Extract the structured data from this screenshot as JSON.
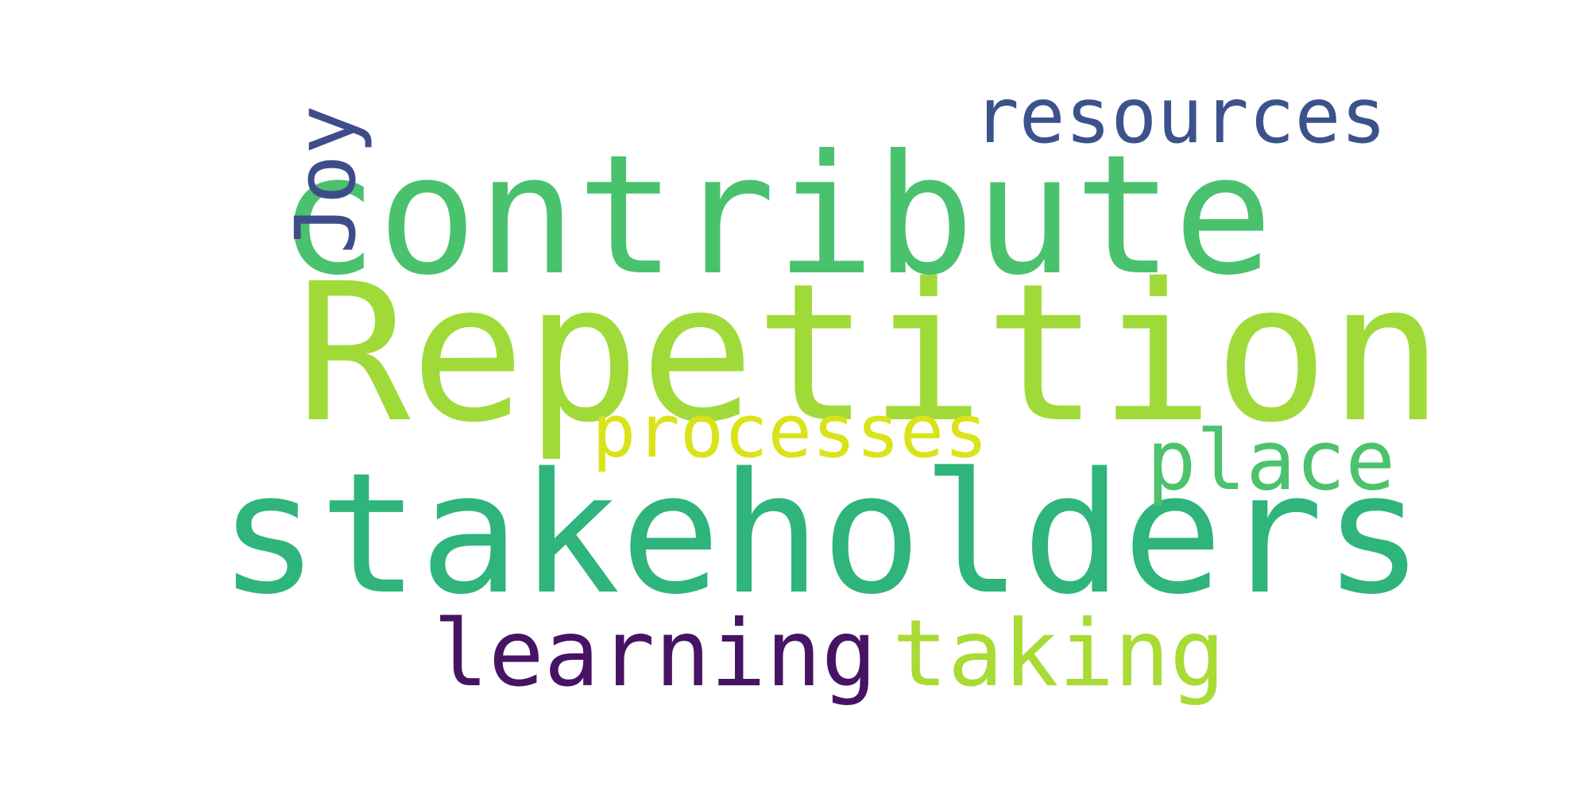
{
  "words": [
    {
      "text": "Repetition",
      "color": "#a0da39"
    },
    {
      "text": "stakeholders",
      "color": "#2fb47c"
    },
    {
      "text": "contribute",
      "color": "#4ac16d"
    },
    {
      "text": "resources",
      "color": "#3b528b"
    },
    {
      "text": "Joy",
      "color": "#3e4c8a"
    },
    {
      "text": "processes",
      "color": "#dae319"
    },
    {
      "text": "place",
      "color": "#4cc26c"
    },
    {
      "text": "learning",
      "color": "#471365"
    },
    {
      "text": "taking",
      "color": "#a8db34"
    }
  ]
}
